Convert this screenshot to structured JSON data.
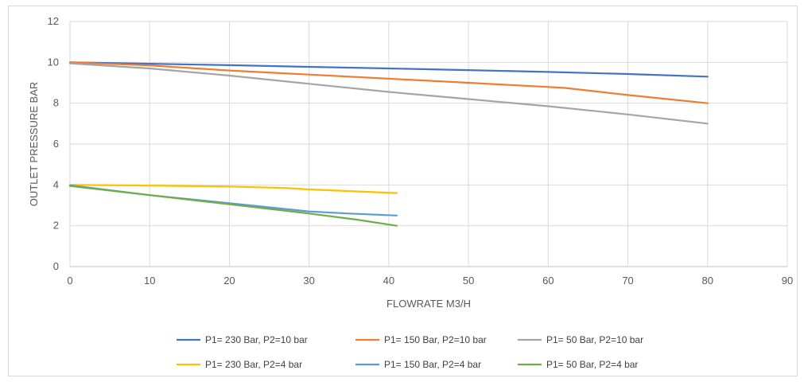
{
  "chart_data": {
    "type": "line",
    "title": "",
    "xlabel": "FLOWRATE M3/H",
    "ylabel": "OUTLET PRESSURE BAR",
    "xlim": [
      0,
      90
    ],
    "ylim": [
      0,
      12
    ],
    "x_ticks": [
      "0",
      "10",
      "20",
      "30",
      "40",
      "50",
      "60",
      "70",
      "80",
      "90"
    ],
    "y_ticks": [
      "0",
      "2",
      "4",
      "6",
      "8",
      "10",
      "12"
    ],
    "grid": true,
    "legend_position": "bottom",
    "series": [
      {
        "name": "P1= 230 Bar, P2=10 bar",
        "color": "#4472C4",
        "points": [
          [
            0,
            10.0
          ],
          [
            10,
            9.93
          ],
          [
            20,
            9.86
          ],
          [
            30,
            9.78
          ],
          [
            40,
            9.7
          ],
          [
            50,
            9.62
          ],
          [
            60,
            9.53
          ],
          [
            70,
            9.43
          ],
          [
            80,
            9.3
          ]
        ]
      },
      {
        "name": "P1= 150 Bar, P2=10 bar",
        "color": "#ED7D31",
        "points": [
          [
            0,
            10.0
          ],
          [
            10,
            9.85
          ],
          [
            20,
            9.6
          ],
          [
            30,
            9.4
          ],
          [
            40,
            9.2
          ],
          [
            50,
            9.0
          ],
          [
            62,
            8.75
          ],
          [
            70,
            8.4
          ],
          [
            80,
            8.0
          ]
        ]
      },
      {
        "name": "P1= 50 Bar, P2=10 bar",
        "color": "#A5A5A5",
        "points": [
          [
            0,
            9.95
          ],
          [
            10,
            9.7
          ],
          [
            20,
            9.35
          ],
          [
            30,
            8.95
          ],
          [
            40,
            8.55
          ],
          [
            50,
            8.2
          ],
          [
            60,
            7.85
          ],
          [
            70,
            7.45
          ],
          [
            80,
            7.0
          ]
        ]
      },
      {
        "name": "P1= 230 Bar, P2=4 bar",
        "color": "#FFC000",
        "points": [
          [
            0,
            4.0
          ],
          [
            10,
            3.97
          ],
          [
            20,
            3.92
          ],
          [
            27,
            3.85
          ],
          [
            30,
            3.78
          ],
          [
            41,
            3.6
          ]
        ]
      },
      {
        "name": "P1= 150 Bar, P2=4 bar",
        "color": "#5B9BD5",
        "points": [
          [
            0,
            3.98
          ],
          [
            10,
            3.5
          ],
          [
            20,
            3.1
          ],
          [
            30,
            2.7
          ],
          [
            35,
            2.6
          ],
          [
            41,
            2.5
          ]
        ]
      },
      {
        "name": "P1= 50 Bar, P2=4 bar",
        "color": "#70AD47",
        "points": [
          [
            0,
            3.95
          ],
          [
            10,
            3.5
          ],
          [
            20,
            3.05
          ],
          [
            30,
            2.6
          ],
          [
            36,
            2.3
          ],
          [
            41,
            2.0
          ]
        ]
      }
    ]
  }
}
